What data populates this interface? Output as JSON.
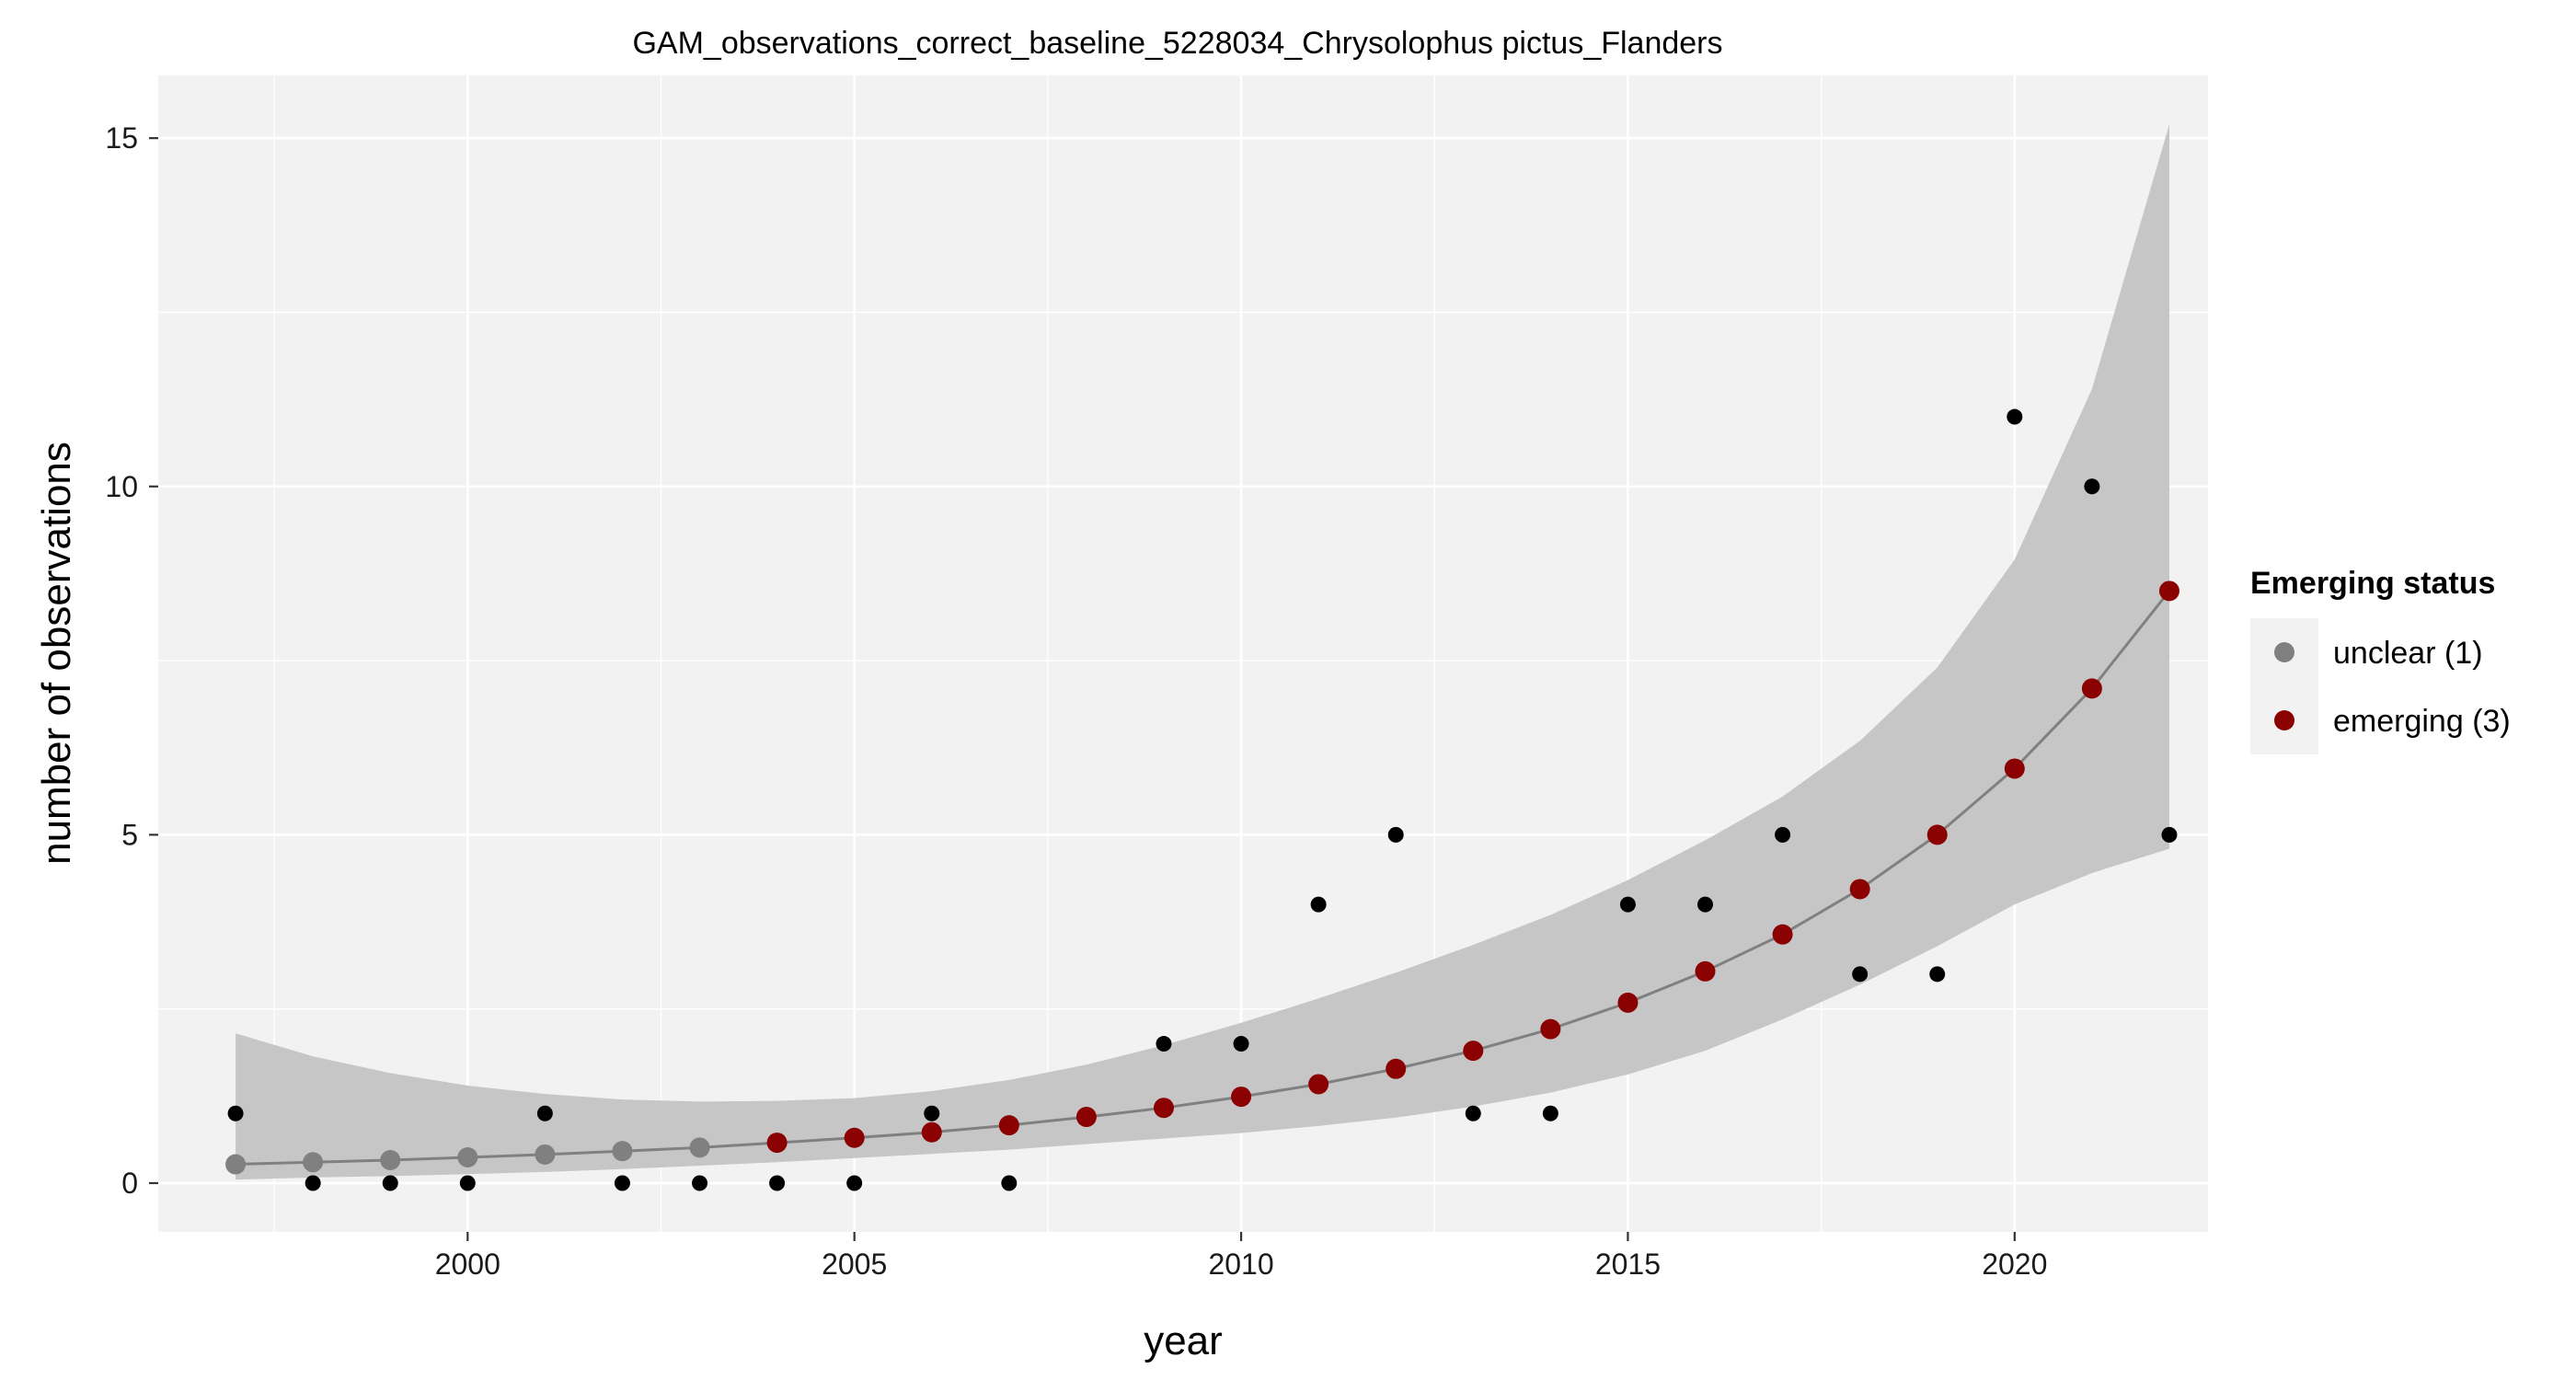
{
  "chart_data": {
    "type": "scatter",
    "title": "GAM_observations_correct_baseline_5228034_Chrysolophus pictus_Flanders",
    "xlabel": "year",
    "ylabel": "number of observations",
    "xlim": [
      1996.0,
      2022.5
    ],
    "ylim": [
      -0.7,
      15.9
    ],
    "x_ticks": [
      2000,
      2005,
      2010,
      2015,
      2020
    ],
    "y_ticks": [
      0,
      5,
      10,
      15
    ],
    "grid": true,
    "legend_position": "right",
    "legend": {
      "title": "Emerging status",
      "entries": [
        {
          "label": "unclear (1)",
          "color": "#808080"
        },
        {
          "label": "emerging (3)",
          "color": "#8b0000"
        }
      ]
    },
    "colors": {
      "panel_background": "#f2f2f2",
      "grid_line": "#ffffff",
      "ribbon": "#c6c6c6",
      "fit_line": "#808080",
      "observed_point": "#000000",
      "unclear": "#808080",
      "emerging": "#8b0000"
    },
    "observed": {
      "x": [
        1997,
        1998,
        1999,
        2000,
        2001,
        2002,
        2003,
        2004,
        2005,
        2006,
        2007,
        2009,
        2010,
        2011,
        2012,
        2013,
        2014,
        2015,
        2016,
        2017,
        2018,
        2019,
        2020,
        2021,
        2022
      ],
      "y": [
        1,
        0,
        0,
        0,
        1,
        0,
        0,
        0,
        0,
        1,
        0,
        2,
        2,
        4,
        5,
        1,
        1,
        4,
        4,
        5,
        3,
        3,
        11,
        10,
        5
      ]
    },
    "fit": {
      "x": [
        1997,
        1998,
        1999,
        2000,
        2001,
        2002,
        2003,
        2004,
        2005,
        2006,
        2007,
        2008,
        2009,
        2010,
        2011,
        2012,
        2013,
        2014,
        2015,
        2016,
        2017,
        2018,
        2019,
        2020,
        2021,
        2022
      ],
      "y": [
        0.27,
        0.3,
        0.33,
        0.37,
        0.41,
        0.46,
        0.51,
        0.58,
        0.65,
        0.73,
        0.83,
        0.95,
        1.08,
        1.24,
        1.42,
        1.64,
        1.9,
        2.21,
        2.59,
        3.04,
        3.57,
        4.22,
        5.0,
        5.95,
        7.1,
        8.5
      ],
      "lower": [
        0.05,
        0.08,
        0.1,
        0.13,
        0.16,
        0.2,
        0.25,
        0.3,
        0.36,
        0.42,
        0.48,
        0.56,
        0.64,
        0.72,
        0.82,
        0.94,
        1.1,
        1.3,
        1.56,
        1.9,
        2.35,
        2.85,
        3.4,
        4.0,
        4.45,
        4.8
      ],
      "upper": [
        2.15,
        1.82,
        1.58,
        1.4,
        1.28,
        1.2,
        1.17,
        1.18,
        1.22,
        1.32,
        1.48,
        1.7,
        1.98,
        2.3,
        2.65,
        3.02,
        3.42,
        3.85,
        4.35,
        4.92,
        5.55,
        6.35,
        7.4,
        8.95,
        11.4,
        15.2
      ],
      "status": [
        "unclear",
        "unclear",
        "unclear",
        "unclear",
        "unclear",
        "unclear",
        "unclear",
        "emerging",
        "emerging",
        "emerging",
        "emerging",
        "emerging",
        "emerging",
        "emerging",
        "emerging",
        "emerging",
        "emerging",
        "emerging",
        "emerging",
        "emerging",
        "emerging",
        "emerging",
        "emerging",
        "emerging",
        "emerging",
        "emerging"
      ]
    }
  }
}
